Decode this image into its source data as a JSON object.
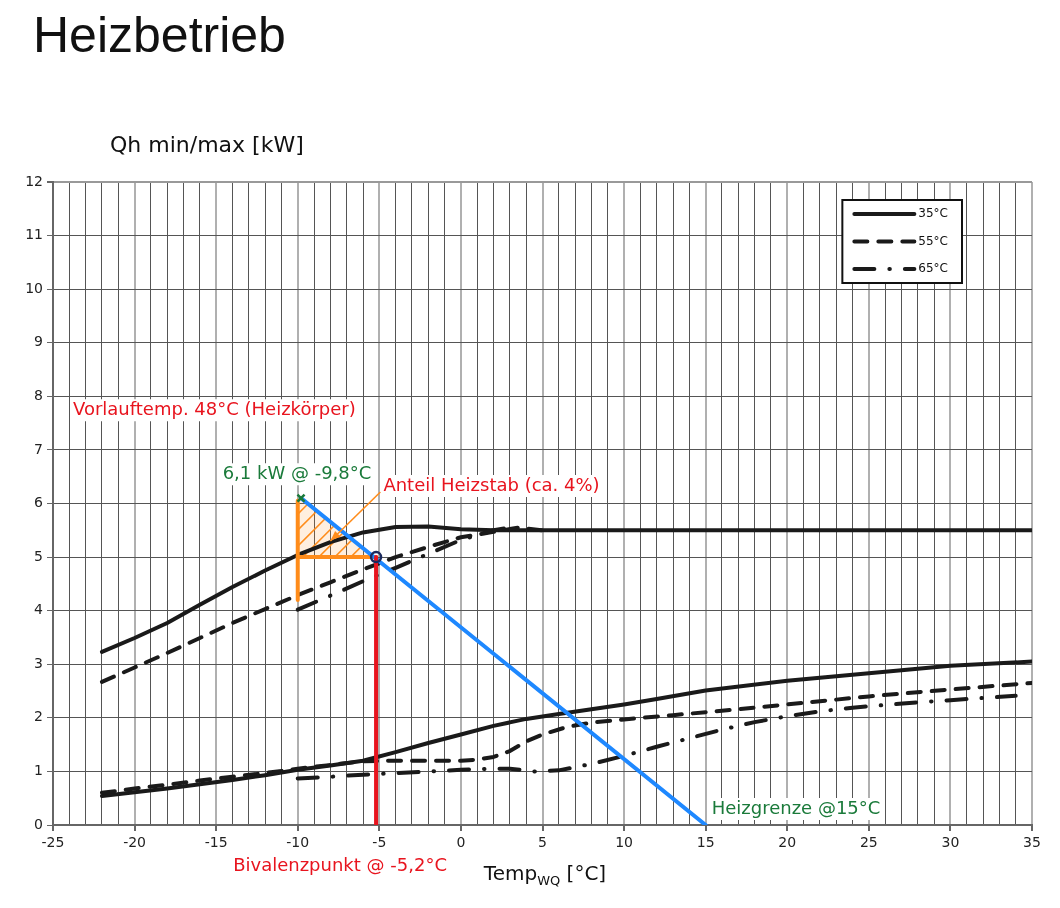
{
  "chart_data": {
    "type": "line",
    "title": "Heizbetrieb",
    "xlabel": "Temp$_{WQ}$ [°C]",
    "ylabel": "Qh min/max [kW]",
    "xlim": [
      -25,
      35
    ],
    "xticks": [
      -25,
      {
        "value": -24,
        "label": null
      },
      {
        "value": -23,
        "label": null
      },
      {
        "value": -22,
        "label": null
      },
      {
        "value": -21,
        "label": null
      },
      -20,
      {
        "value": -19,
        "label": null
      },
      {
        "value": -18,
        "label": null
      },
      {
        "value": -17,
        "label": null
      },
      {
        "value": -16,
        "label": null
      },
      -15,
      {
        "value": -14,
        "label": null
      },
      {
        "value": -13,
        "label": null
      },
      {
        "value": -12,
        "label": null
      },
      {
        "value": -11,
        "label": null
      },
      -10,
      {
        "value": -9,
        "label": null
      },
      {
        "value": -8,
        "label": null
      },
      {
        "value": -7,
        "label": null
      },
      {
        "value": -6,
        "label": null
      },
      -5,
      {
        "value": -4,
        "label": null
      },
      {
        "value": -3,
        "label": null
      },
      {
        "value": -2,
        "label": null
      },
      {
        "value": -1,
        "label": null
      },
      0,
      {
        "value": 1,
        "label": null
      },
      {
        "value": 2,
        "label": null
      },
      {
        "value": 3,
        "label": null
      },
      {
        "value": 4,
        "label": null
      },
      5,
      {
        "value": 6,
        "label": null
      },
      {
        "value": 7,
        "label": null
      },
      {
        "value": 8,
        "label": null
      },
      {
        "value": 9,
        "label": null
      },
      10,
      {
        "value": 11,
        "label": null
      },
      {
        "value": 12,
        "label": null
      },
      {
        "value": 13,
        "label": null
      },
      {
        "value": 14,
        "label": null
      },
      15,
      {
        "value": 16,
        "label": null
      },
      {
        "value": 17,
        "label": null
      },
      {
        "value": 18,
        "label": null
      },
      {
        "value": 19,
        "label": null
      },
      20,
      {
        "value": 21,
        "label": null
      },
      {
        "value": 22,
        "label": null
      },
      {
        "value": 23,
        "label": null
      },
      {
        "value": 24,
        "label": null
      },
      25,
      {
        "value": 26,
        "label": null
      },
      {
        "value": 27,
        "label": null
      },
      {
        "value": 28,
        "label": null
      },
      {
        "value": 29,
        "label": null
      },
      30,
      {
        "value": 31,
        "label": null
      },
      {
        "value": 32,
        "label": null
      },
      {
        "value": 33,
        "label": null
      },
      {
        "value": 34,
        "label": null
      },
      35
    ],
    "ylim": [
      0,
      12
    ],
    "yticks": [
      0,
      1,
      2,
      3,
      4,
      5,
      6,
      7,
      8,
      9,
      10,
      11,
      12
    ],
    "grid": true,
    "legend": "top right",
    "series": [
      {
        "name": "35°C",
        "color": "#1a1a1a",
        "line_style": "solid",
        "x": [
          -22,
          -20,
          -18,
          -16,
          -14,
          -12,
          -10,
          -8,
          -6,
          -4,
          -2,
          0,
          2,
          35
        ],
        "values": [
          3.23,
          3.49,
          3.77,
          4.11,
          4.44,
          4.75,
          5.04,
          5.28,
          5.46,
          5.56,
          5.57,
          5.52,
          5.5,
          5.5
        ]
      },
      {
        "name": "55°C",
        "color": "#1a1a1a",
        "line_style": "dashed",
        "x": [
          -22,
          -20,
          -18,
          -16,
          -14,
          -12,
          -10,
          -8,
          -6,
          -4,
          -2,
          0,
          2,
          3.5,
          5
        ],
        "values": [
          2.67,
          2.94,
          3.21,
          3.49,
          3.77,
          4.03,
          4.29,
          4.53,
          4.77,
          5.0,
          5.19,
          5.37,
          5.47,
          5.55,
          5.5
        ]
      },
      {
        "name": "65°C",
        "color": "#1a1a1a",
        "line_style": "dashdot",
        "x": [
          -10,
          -8,
          -6,
          -4,
          -2,
          0,
          2,
          3
        ],
        "values": [
          4.02,
          4.28,
          4.55,
          4.8,
          5.06,
          5.32,
          5.5,
          5.55
        ]
      },
      {
        "color": "#1a1a1a",
        "line_style": "solid",
        "x": [
          -22,
          -20,
          -18,
          -16,
          -14,
          -12,
          -10,
          -8,
          -6,
          -4,
          -2,
          0,
          2,
          4,
          6,
          8,
          10,
          12,
          15,
          20,
          25,
          30,
          35
        ],
        "values": [
          0.54,
          0.61,
          0.68,
          0.76,
          0.84,
          0.93,
          1.03,
          1.11,
          1.2,
          1.36,
          1.53,
          1.69,
          1.85,
          1.98,
          2.07,
          2.16,
          2.25,
          2.35,
          2.51,
          2.69,
          2.83,
          2.97,
          3.05
        ]
      },
      {
        "color": "#1a1a1a",
        "line_style": "dashed",
        "x": [
          -22,
          -20,
          -18,
          -16,
          -14,
          -12,
          -10,
          -8,
          -6,
          -4,
          -2,
          0,
          1,
          2,
          3,
          4,
          5,
          6.5,
          8,
          10,
          13,
          17,
          21,
          25,
          30,
          35
        ],
        "values": [
          0.6,
          0.68,
          0.75,
          0.83,
          0.9,
          0.97,
          1.05,
          1.12,
          1.19,
          1.2,
          1.2,
          1.2,
          1.22,
          1.27,
          1.38,
          1.56,
          1.69,
          1.83,
          1.91,
          1.97,
          2.05,
          2.16,
          2.28,
          2.4,
          2.53,
          2.65
        ]
      },
      {
        "color": "#1a1a1a",
        "line_style": "dashdot",
        "x": [
          -10,
          -8,
          -6,
          -4,
          -2,
          0,
          2,
          3,
          4.5,
          6,
          8,
          10,
          12,
          14,
          16,
          18,
          20,
          22,
          24,
          26,
          28,
          30,
          32,
          34
        ],
        "values": [
          0.87,
          0.9,
          0.94,
          0.97,
          1.0,
          1.03,
          1.05,
          1.05,
          1.0,
          1.02,
          1.14,
          1.29,
          1.46,
          1.62,
          1.78,
          1.92,
          2.03,
          2.12,
          2.19,
          2.24,
          2.29,
          2.33,
          2.37,
          2.41
        ]
      },
      {
        "color": "#ff8c1a",
        "line_style": "solid",
        "x": [
          -10,
          -10
        ],
        "values": [
          4.2,
          6.05
        ]
      },
      {
        "color": "#ff8c1a",
        "line_style": "solid",
        "x": [
          -10,
          -5.2
        ],
        "values": [
          5.0,
          5.0
        ],
        "lower": [
          5.0,
          5.0
        ],
        "upper": [
          6.1,
          5.0
        ]
      },
      {
        "color": "#1e88ff",
        "line_style": "solid",
        "x": [
          -9.8,
          15
        ],
        "values": [
          6.1,
          0
        ]
      },
      {
        "color": "#e8141e",
        "line_style": "solid",
        "x": [
          -5.2,
          -5.2
        ],
        "values": [
          0,
          5.0
        ]
      },
      {
        "type": "scatter",
        "color": "#1a7a3a",
        "marker": "cross",
        "x": [
          -9.8
        ],
        "values": [
          6.1
        ]
      },
      {
        "type": "scatter",
        "color": "#1b2a5e",
        "marker": "circle",
        "x": [
          -5.2
        ],
        "values": [
          5.0
        ]
      }
    ],
    "annotations": [
      "Vorlauftemp. 48°C (Heizkörper)",
      {
        "text": "6,1 kW @ -9,8°C",
        "x": -9.8,
        "y": 6.1
      },
      {
        "text": "Anteil Heizstab (ca. 4%)",
        "x": -8,
        "y": 5.3
      },
      {
        "text": "Bivalenzpunkt @ -5,2°C",
        "x": -5.2,
        "y": 0
      },
      {
        "text": "Heizgrenze @15°C",
        "x": 15,
        "y": 0
      }
    ]
  }
}
